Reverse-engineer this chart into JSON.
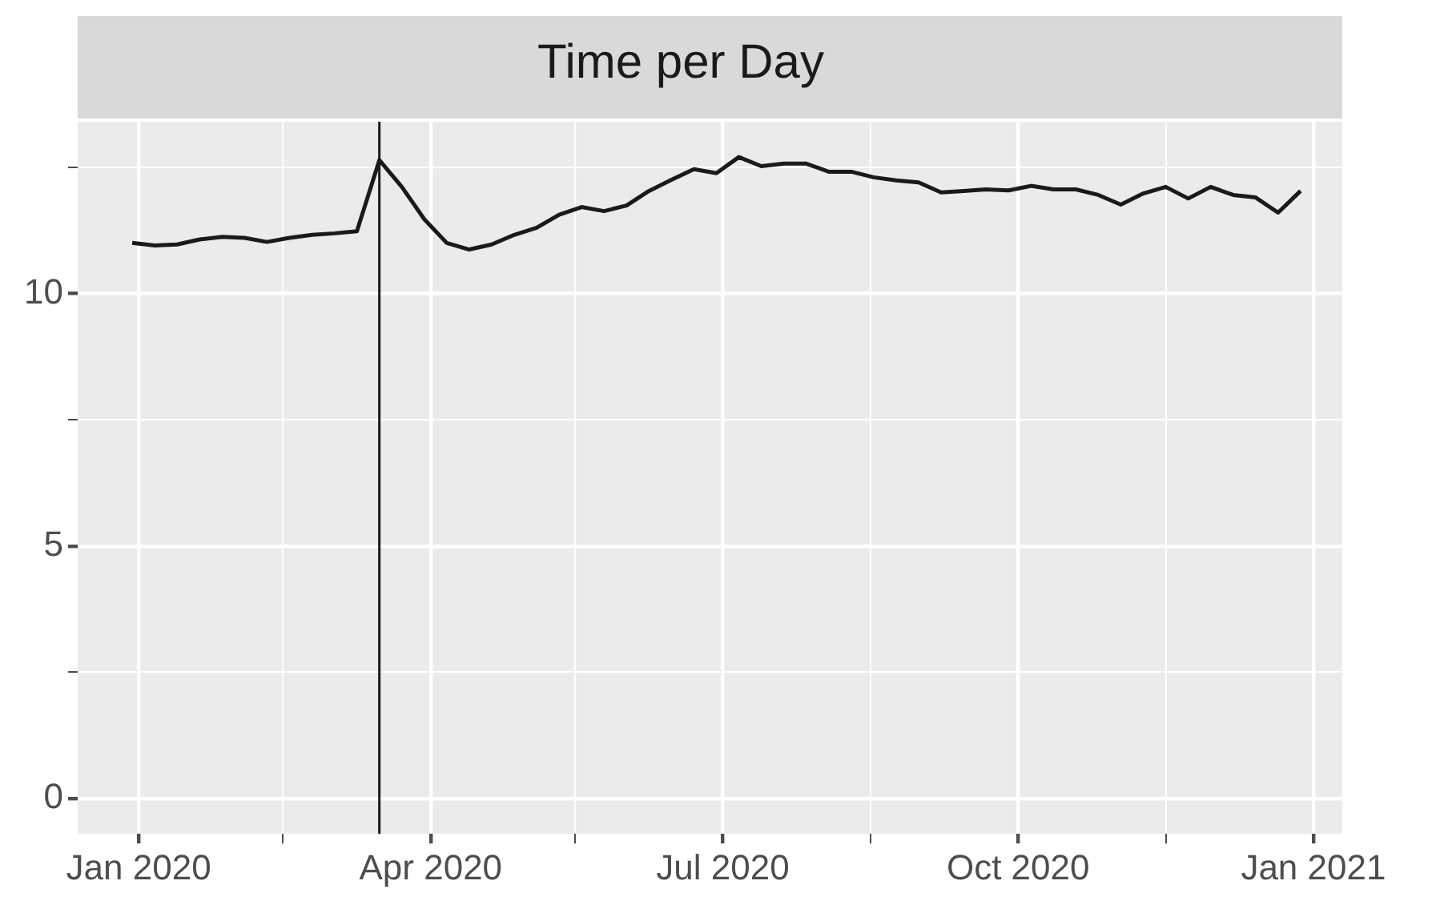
{
  "chart_data": {
    "type": "line",
    "title": "Time per Day",
    "x": [
      "2019-12-30",
      "2020-01-06",
      "2020-01-13",
      "2020-01-20",
      "2020-01-27",
      "2020-02-03",
      "2020-02-10",
      "2020-02-17",
      "2020-02-24",
      "2020-03-02",
      "2020-03-09",
      "2020-03-16",
      "2020-03-23",
      "2020-03-30",
      "2020-04-06",
      "2020-04-13",
      "2020-04-20",
      "2020-04-27",
      "2020-05-04",
      "2020-05-11",
      "2020-05-18",
      "2020-05-25",
      "2020-06-01",
      "2020-06-08",
      "2020-06-15",
      "2020-06-22",
      "2020-06-29",
      "2020-07-06",
      "2020-07-13",
      "2020-07-20",
      "2020-07-27",
      "2020-08-03",
      "2020-08-10",
      "2020-08-17",
      "2020-08-24",
      "2020-08-31",
      "2020-09-07",
      "2020-09-14",
      "2020-09-21",
      "2020-09-28",
      "2020-10-05",
      "2020-10-12",
      "2020-10-19",
      "2020-10-26",
      "2020-11-02",
      "2020-11-09",
      "2020-11-16",
      "2020-11-23",
      "2020-11-30",
      "2020-12-07",
      "2020-12-14",
      "2020-12-21",
      "2020-12-28"
    ],
    "series": [
      {
        "color": "#1a1a1a",
        "values": [
          11.0,
          10.95,
          10.97,
          11.07,
          11.12,
          11.1,
          11.02,
          11.1,
          11.16,
          11.19,
          11.23,
          12.64,
          12.11,
          11.47,
          11.0,
          10.87,
          10.97,
          11.16,
          11.3,
          11.56,
          11.71,
          11.63,
          11.74,
          12.03,
          12.25,
          12.46,
          12.38,
          12.7,
          12.52,
          12.57,
          12.57,
          12.41,
          12.41,
          12.3,
          12.24,
          12.2,
          12.0,
          12.03,
          12.06,
          12.04,
          12.13,
          12.06,
          12.06,
          11.95,
          11.76,
          11.98,
          12.11,
          11.88,
          12.11,
          11.95,
          11.9,
          11.6,
          12.03
        ]
      }
    ],
    "xlim": [
      "2019-12-13",
      "2021-01-10"
    ],
    "xticks": [
      {
        "value": "2020-01-01",
        "label": "Jan 2020"
      },
      {
        "value": "2020-02-15",
        "label": null
      },
      {
        "value": "2020-04-01",
        "label": "Apr 2020"
      },
      {
        "value": "2020-05-16",
        "label": null
      },
      {
        "value": "2020-07-01",
        "label": "Jul 2020"
      },
      {
        "value": "2020-08-16",
        "label": null
      },
      {
        "value": "2020-10-01",
        "label": "Oct 2020"
      },
      {
        "value": "2020-11-16",
        "label": null
      },
      {
        "value": "2021-01-01",
        "label": "Jan 2021"
      }
    ],
    "ylim": [
      -0.7,
      13.4
    ],
    "yticks": [
      0,
      {
        "value": 2.5,
        "label": null
      },
      5,
      {
        "value": 7.5,
        "label": null
      },
      10,
      {
        "value": 12.5,
        "label": null
      }
    ],
    "ref_lines": [
      {
        "axis": "x",
        "value": "2020-03-16",
        "color": "#1a1a1a"
      }
    ],
    "grid": true,
    "legend": false,
    "marker": "none",
    "line_style": "solid"
  }
}
